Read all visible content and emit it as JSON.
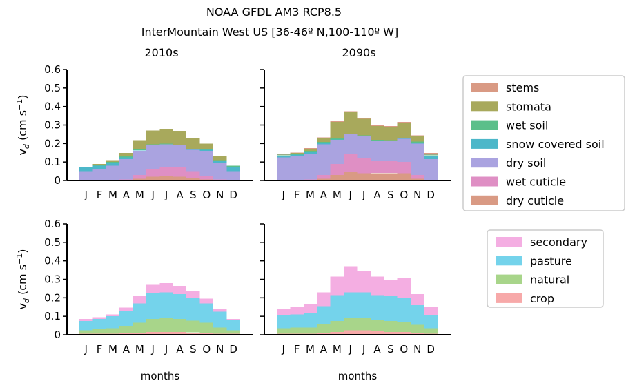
{
  "figure": {
    "title_line1": "NOAA GFDL AM3 RCP8.5",
    "title_line2": "InterMountain West US [36-46º N,100-110º W]"
  },
  "colors": {
    "stems": "#d99a84",
    "stomata": "#a8a95c",
    "wet_soil": "#5bbf8a",
    "snow_covered_soil": "#4cb7c9",
    "dry_soil": "#aaa3e0",
    "wet_cuticle": "#df8fc4",
    "dry_cuticle": "#d99a84",
    "secondary": "#f4aee2",
    "pasture": "#74d3eb",
    "natural": "#a8d58a",
    "crop": "#f7a9a9"
  },
  "chart_data": [
    {
      "type": "area",
      "panel": "top-left",
      "title": "2010s",
      "ylabel": "v_d (cm s^-1)",
      "ylim": [
        0,
        0.6
      ],
      "yticks": [
        "0",
        "0.1",
        "0.2",
        "0.3",
        "0.4",
        "0.5",
        "0.6"
      ],
      "categories": [
        "J",
        "F",
        "M",
        "A",
        "M",
        "J",
        "J",
        "A",
        "S",
        "O",
        "N",
        "D"
      ],
      "stacked": true,
      "series": [
        {
          "name": "dry cuticle",
          "color_key": "dry_cuticle",
          "values": [
            0,
            0,
            0,
            0,
            0.01,
            0.02,
            0.025,
            0.02,
            0.015,
            0.005,
            0,
            0
          ]
        },
        {
          "name": "wet cuticle",
          "color_key": "wet_cuticle",
          "values": [
            0,
            0,
            0,
            0.005,
            0.02,
            0.04,
            0.05,
            0.05,
            0.035,
            0.02,
            0.005,
            0
          ]
        },
        {
          "name": "dry soil",
          "color_key": "dry_soil",
          "values": [
            0.05,
            0.06,
            0.08,
            0.11,
            0.13,
            0.13,
            0.12,
            0.12,
            0.115,
            0.135,
            0.09,
            0.05
          ]
        },
        {
          "name": "snow covered soil",
          "color_key": "snow_covered_soil",
          "values": [
            0.02,
            0.02,
            0.015,
            0.01,
            0.003,
            0.001,
            0,
            0,
            0.002,
            0.006,
            0.01,
            0.025
          ]
        },
        {
          "name": "wet soil",
          "color_key": "wet_soil",
          "values": [
            0.005,
            0.005,
            0.005,
            0.005,
            0.005,
            0.004,
            0.004,
            0.004,
            0.004,
            0.004,
            0.005,
            0.005
          ]
        },
        {
          "name": "stomata",
          "color_key": "stomata",
          "values": [
            0,
            0.005,
            0.01,
            0.02,
            0.05,
            0.075,
            0.08,
            0.075,
            0.06,
            0.03,
            0.02,
            0
          ]
        },
        {
          "name": "stems",
          "color_key": "stems",
          "values": [
            0,
            0,
            0,
            0,
            0,
            0,
            0,
            0,
            0,
            0,
            0,
            0
          ]
        }
      ]
    },
    {
      "type": "area",
      "panel": "top-right",
      "title": "2090s",
      "ylim": [
        0,
        0.6
      ],
      "categories": [
        "J",
        "F",
        "M",
        "A",
        "M",
        "J",
        "J",
        "A",
        "S",
        "O",
        "N",
        "D"
      ],
      "stacked": true,
      "series": [
        {
          "name": "dry cuticle",
          "color_key": "dry_cuticle",
          "values": [
            0,
            0,
            0,
            0.01,
            0.03,
            0.045,
            0.04,
            0.04,
            0.04,
            0.04,
            0.01,
            0
          ]
        },
        {
          "name": "wet cuticle",
          "color_key": "wet_cuticle",
          "values": [
            0,
            0,
            0.005,
            0.02,
            0.06,
            0.1,
            0.08,
            0.065,
            0.065,
            0.06,
            0.02,
            0
          ]
        },
        {
          "name": "dry soil",
          "color_key": "dry_soil",
          "values": [
            0.125,
            0.13,
            0.14,
            0.165,
            0.13,
            0.105,
            0.12,
            0.11,
            0.11,
            0.125,
            0.17,
            0.115
          ]
        },
        {
          "name": "snow covered soil",
          "color_key": "snow_covered_soil",
          "values": [
            0.01,
            0.01,
            0.01,
            0.008,
            0.002,
            0,
            0,
            0,
            0,
            0.002,
            0.005,
            0.02
          ]
        },
        {
          "name": "wet soil",
          "color_key": "wet_soil",
          "values": [
            0.005,
            0.005,
            0.005,
            0.005,
            0.005,
            0.004,
            0.004,
            0.004,
            0.004,
            0.004,
            0.005,
            0.005
          ]
        },
        {
          "name": "stomata",
          "color_key": "stomata",
          "values": [
            0,
            0.005,
            0.01,
            0.02,
            0.09,
            0.115,
            0.09,
            0.075,
            0.07,
            0.08,
            0.03,
            0
          ]
        },
        {
          "name": "stems",
          "color_key": "stems",
          "values": [
            0.005,
            0.005,
            0.005,
            0.005,
            0.005,
            0.005,
            0.005,
            0.005,
            0.005,
            0.005,
            0.005,
            0.01
          ]
        }
      ]
    },
    {
      "type": "area",
      "panel": "bottom-left",
      "xlabel": "months",
      "ylabel": "v_d (cm s^-1)",
      "ylim": [
        0,
        0.6
      ],
      "yticks": [
        "0",
        "0.1",
        "0.2",
        "0.3",
        "0.4",
        "0.5",
        "0.6"
      ],
      "categories": [
        "J",
        "F",
        "M",
        "A",
        "M",
        "J",
        "J",
        "A",
        "S",
        "O",
        "N",
        "D"
      ],
      "stacked": true,
      "series": [
        {
          "name": "crop",
          "color_key": "crop",
          "values": [
            0.005,
            0.005,
            0.005,
            0.008,
            0.01,
            0.015,
            0.015,
            0.015,
            0.012,
            0.01,
            0.005,
            0.005
          ]
        },
        {
          "name": "natural",
          "color_key": "natural",
          "values": [
            0.02,
            0.025,
            0.03,
            0.04,
            0.055,
            0.07,
            0.075,
            0.07,
            0.065,
            0.055,
            0.035,
            0.02
          ]
        },
        {
          "name": "pasture",
          "color_key": "pasture",
          "values": [
            0.05,
            0.055,
            0.065,
            0.08,
            0.105,
            0.14,
            0.14,
            0.135,
            0.125,
            0.105,
            0.085,
            0.055
          ]
        },
        {
          "name": "secondary",
          "color_key": "secondary",
          "values": [
            0.01,
            0.01,
            0.01,
            0.02,
            0.04,
            0.045,
            0.05,
            0.045,
            0.035,
            0.025,
            0.015,
            0.005
          ]
        }
      ]
    },
    {
      "type": "area",
      "panel": "bottom-right",
      "xlabel": "months",
      "ylim": [
        0,
        0.6
      ],
      "categories": [
        "J",
        "F",
        "M",
        "A",
        "M",
        "J",
        "J",
        "A",
        "S",
        "O",
        "N",
        "D"
      ],
      "stacked": true,
      "series": [
        {
          "name": "crop",
          "color_key": "crop",
          "values": [
            0.005,
            0.005,
            0.005,
            0.01,
            0.015,
            0.025,
            0.025,
            0.02,
            0.015,
            0.015,
            0.01,
            0.005
          ]
        },
        {
          "name": "natural",
          "color_key": "natural",
          "values": [
            0.03,
            0.035,
            0.035,
            0.045,
            0.06,
            0.065,
            0.065,
            0.06,
            0.06,
            0.055,
            0.045,
            0.03
          ]
        },
        {
          "name": "pasture",
          "color_key": "pasture",
          "values": [
            0.07,
            0.07,
            0.08,
            0.1,
            0.14,
            0.14,
            0.14,
            0.135,
            0.135,
            0.13,
            0.105,
            0.07
          ]
        },
        {
          "name": "secondary",
          "color_key": "secondary",
          "values": [
            0.035,
            0.04,
            0.045,
            0.075,
            0.1,
            0.14,
            0.115,
            0.1,
            0.085,
            0.11,
            0.06,
            0.045
          ]
        }
      ]
    }
  ]
}
